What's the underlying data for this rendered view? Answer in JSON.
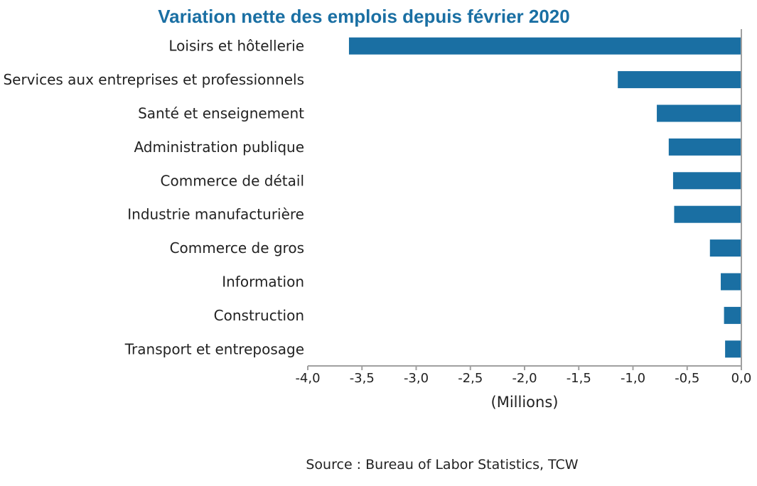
{
  "chart_data": {
    "type": "bar",
    "orientation": "horizontal",
    "title": "Variation nette des emplois depuis février 2020",
    "categories": [
      "Loisirs et hôtellerie",
      "Services aux entreprises et professionnels",
      "Santé et enseignement",
      "Administration publique",
      "Commerce de détail",
      "Industrie manufacturière",
      "Commerce de gros",
      "Information",
      "Construction",
      "Transport et entreposage"
    ],
    "values": [
      -3.62,
      -1.14,
      -0.78,
      -0.67,
      -0.63,
      -0.62,
      -0.29,
      -0.19,
      -0.16,
      -0.15
    ],
    "xlabel": "(Millions)",
    "ylabel": "",
    "xlim": [
      -4.0,
      0.0
    ],
    "x_ticks": [
      -4.0,
      -3.5,
      -3.0,
      -2.5,
      -2.0,
      -1.5,
      -1.0,
      -0.5,
      0.0
    ],
    "x_tick_labels": [
      "-4,0",
      "-3,5",
      "-3,0",
      "-2,5",
      "-2,0",
      "-1,5",
      "-1,0",
      "-0,5",
      "0,0"
    ],
    "grid": false,
    "bar_color": "#1a6fa3",
    "title_color": "#1a6fa3",
    "source": "Source : Bureau of Labor Statistics, TCW"
  }
}
